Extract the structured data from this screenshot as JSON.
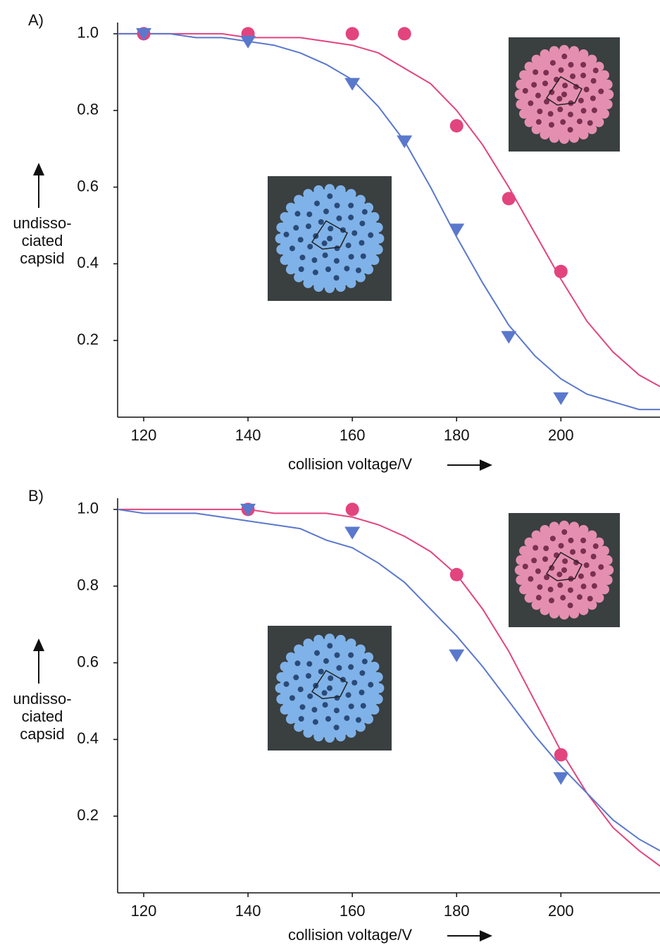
{
  "chart_data": [
    {
      "type": "scatter",
      "panel_label": "A)",
      "xlabel": "collision voltage/V",
      "ylabel": [
        "undisso-",
        "ciated",
        "capsid"
      ],
      "xlim": [
        115,
        219
      ],
      "xticks": [
        120,
        140,
        160,
        180,
        200
      ],
      "ylim": [
        0,
        1.02
      ],
      "yticks": [
        0.2,
        0.4,
        0.6,
        0.8,
        {
          "value": 1,
          "label": "1.0"
        }
      ],
      "series": [
        {
          "mode": "markers",
          "marker": "circle",
          "color": "#e2447e",
          "x": [
            120,
            140,
            160,
            170,
            180,
            190,
            200
          ],
          "values": [
            1.0,
            1.0,
            1.0,
            1.0,
            0.76,
            0.57,
            0.38
          ]
        },
        {
          "mode": "markers",
          "marker": "triangle-down",
          "color": "#5a78cc",
          "x": [
            120,
            140,
            160,
            170,
            180,
            190,
            200
          ],
          "values": [
            1.0,
            0.98,
            0.87,
            0.72,
            0.49,
            0.21,
            0.05
          ]
        },
        {
          "mode": "line",
          "color": "#e2447e",
          "x": [
            115,
            120,
            125,
            130,
            135,
            140,
            145,
            150,
            155,
            160,
            165,
            170,
            175,
            180,
            185,
            190,
            195,
            200,
            205,
            210,
            215,
            219
          ],
          "values": [
            1.0,
            1.0,
            1.0,
            1.0,
            1.0,
            0.99,
            0.99,
            0.99,
            0.98,
            0.97,
            0.95,
            0.91,
            0.87,
            0.8,
            0.71,
            0.6,
            0.48,
            0.36,
            0.25,
            0.17,
            0.11,
            0.08
          ]
        },
        {
          "mode": "line",
          "color": "#5a78cc",
          "x": [
            115,
            120,
            125,
            130,
            135,
            140,
            145,
            150,
            155,
            160,
            165,
            170,
            175,
            180,
            185,
            190,
            195,
            200,
            205,
            210,
            215,
            219
          ],
          "values": [
            1.0,
            1.0,
            1.0,
            0.99,
            0.99,
            0.98,
            0.97,
            0.95,
            0.92,
            0.88,
            0.81,
            0.72,
            0.6,
            0.47,
            0.35,
            0.24,
            0.16,
            0.1,
            0.06,
            0.04,
            0.02,
            0.02
          ]
        }
      ]
    },
    {
      "type": "scatter",
      "panel_label": "B)",
      "xlabel": "collision voltage/V",
      "ylabel": [
        "undisso-",
        "ciated",
        "capsid"
      ],
      "xlim": [
        115,
        219
      ],
      "xticks": [
        120,
        140,
        160,
        180,
        200
      ],
      "ylim": [
        0,
        1.02
      ],
      "yticks": [
        0.2,
        0.4,
        0.6,
        0.8,
        {
          "value": 1,
          "label": "1.0"
        }
      ],
      "series": [
        {
          "mode": "markers",
          "marker": "circle",
          "color": "#e2447e",
          "x": [
            140,
            160,
            180,
            200
          ],
          "values": [
            1.0,
            1.0,
            0.83,
            0.36
          ]
        },
        {
          "mode": "markers",
          "marker": "triangle-down",
          "color": "#5a78cc",
          "x": [
            140,
            160,
            180,
            200
          ],
          "values": [
            1.0,
            0.94,
            0.62,
            0.3
          ]
        },
        {
          "mode": "line",
          "color": "#e2447e",
          "x": [
            115,
            120,
            125,
            130,
            135,
            140,
            145,
            150,
            155,
            160,
            165,
            170,
            175,
            180,
            185,
            190,
            195,
            200,
            205,
            210,
            215,
            219
          ],
          "values": [
            1.0,
            1.0,
            1.0,
            1.0,
            1.0,
            1.0,
            0.99,
            0.99,
            0.99,
            0.98,
            0.96,
            0.93,
            0.89,
            0.83,
            0.74,
            0.63,
            0.5,
            0.37,
            0.26,
            0.17,
            0.11,
            0.07
          ]
        },
        {
          "mode": "line",
          "color": "#5a78cc",
          "x": [
            115,
            120,
            125,
            130,
            135,
            140,
            145,
            150,
            155,
            160,
            165,
            170,
            175,
            180,
            185,
            190,
            195,
            200,
            205,
            210,
            215,
            219
          ],
          "values": [
            1.0,
            0.99,
            0.99,
            0.99,
            0.98,
            0.97,
            0.96,
            0.95,
            0.92,
            0.9,
            0.86,
            0.81,
            0.74,
            0.67,
            0.59,
            0.5,
            0.41,
            0.33,
            0.26,
            0.19,
            0.14,
            0.11
          ]
        }
      ]
    }
  ]
}
